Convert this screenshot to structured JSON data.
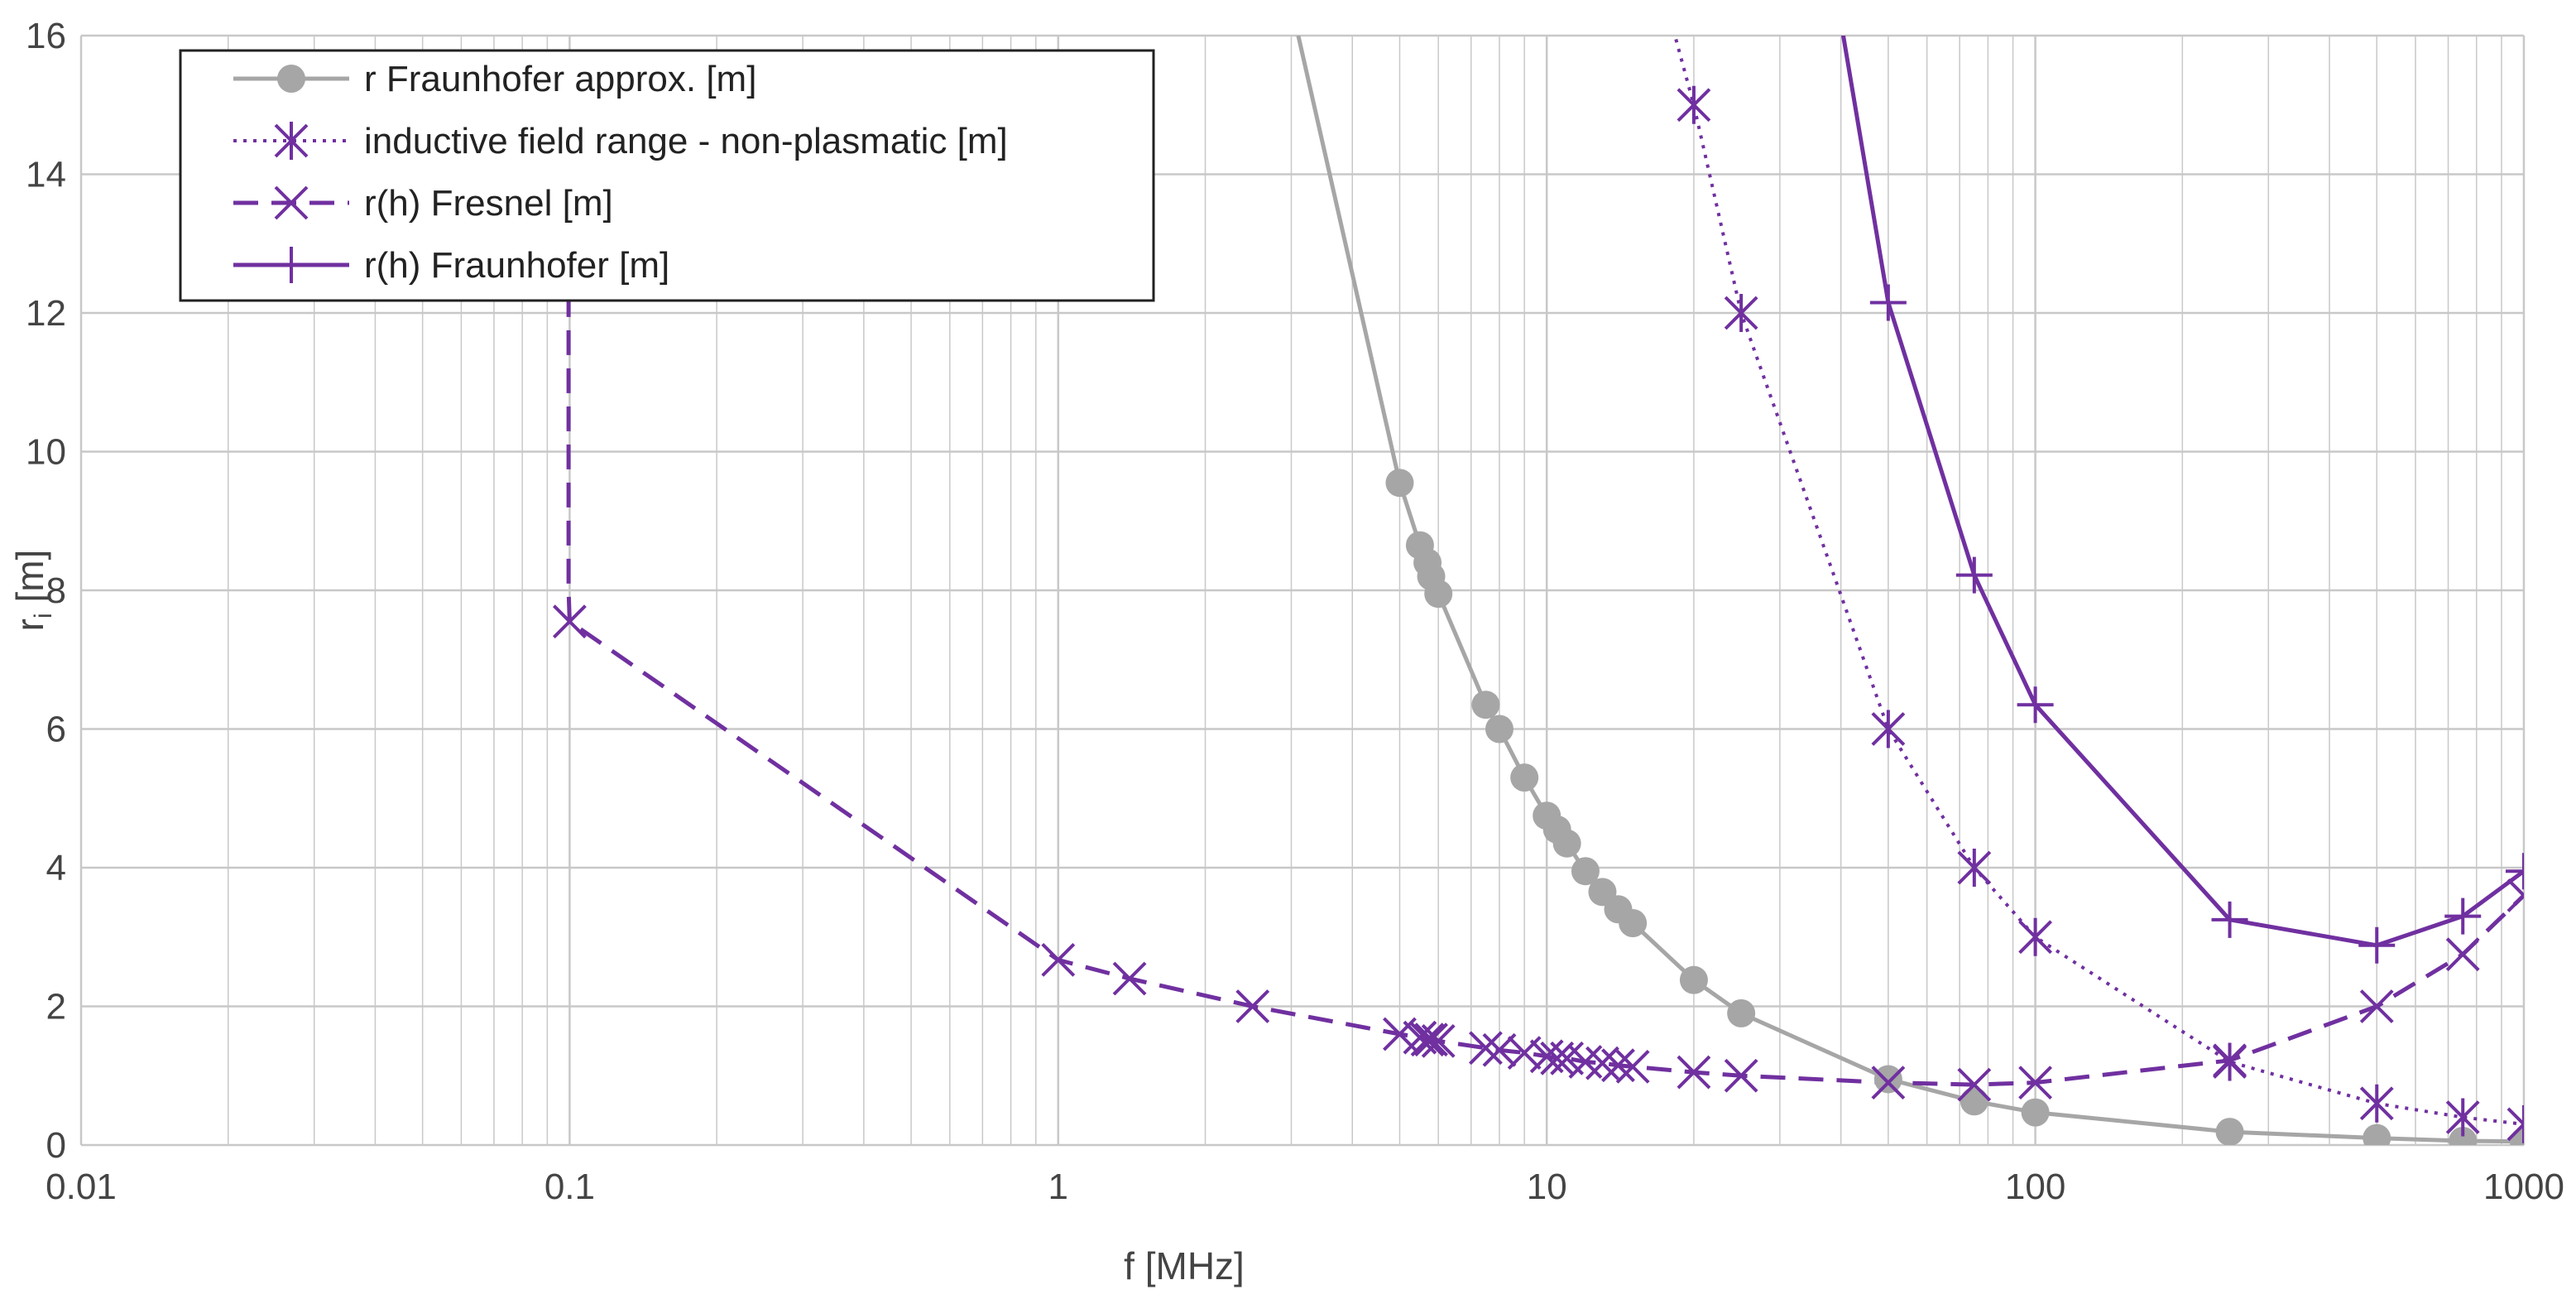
{
  "chart_data": {
    "type": "line",
    "title": "",
    "xlabel": "f [MHz]",
    "ylabel_main": "r",
    "ylabel_sub": "i",
    "ylabel_unit": " [m]",
    "xscale": "log",
    "xlim": [
      0.01,
      1000
    ],
    "ylim": [
      0,
      16
    ],
    "x_ticks": [
      0.01,
      0.1,
      1,
      10,
      100,
      1000
    ],
    "x_tick_labels": [
      "0.01",
      "0.1",
      "1",
      "10",
      "100",
      "1000"
    ],
    "y_ticks": [
      0,
      2,
      4,
      6,
      8,
      10,
      12,
      14,
      16
    ],
    "y_tick_labels": [
      "0",
      "2",
      "4",
      "6",
      "8",
      "10",
      "12",
      "14",
      "16"
    ],
    "grid": true,
    "legend_position": "top-left",
    "colors": {
      "grey": "#a6a6a6",
      "purple": "#7030a0",
      "grid": "#c8c8c8",
      "axis_text": "#444444"
    },
    "series": [
      {
        "name": "r Fraunhofer approx. [m]",
        "color": "#a6a6a6",
        "dash": "solid",
        "marker": "circle",
        "x": [
          3.1,
          5,
          5.5,
          5.7,
          5.8,
          6,
          7.5,
          8,
          9,
          10,
          10.5,
          11,
          12,
          13,
          14,
          15,
          20,
          25,
          50,
          75,
          100,
          250,
          500,
          750,
          1000
        ],
        "y": [
          16,
          9.55,
          8.65,
          8.4,
          8.2,
          7.95,
          6.35,
          6.0,
          5.3,
          4.75,
          4.55,
          4.35,
          3.95,
          3.65,
          3.4,
          3.2,
          2.38,
          1.9,
          0.95,
          0.63,
          0.47,
          0.19,
          0.1,
          0.06,
          0.05
        ],
        "marker_mask": [
          false,
          true,
          true,
          true,
          true,
          true,
          true,
          true,
          true,
          true,
          true,
          true,
          true,
          true,
          true,
          true,
          true,
          true,
          true,
          true,
          true,
          true,
          true,
          true,
          true
        ]
      },
      {
        "name": "inductive field range - non-plasmatic [m]",
        "color": "#7030a0",
        "dash": "dotted",
        "marker": "asterisk",
        "x": [
          17.5,
          20,
          25,
          50,
          75,
          100,
          250,
          500,
          750,
          1000
        ],
        "y": [
          16.5,
          15.0,
          12.0,
          6.0,
          4.0,
          3.0,
          1.2,
          0.6,
          0.4,
          0.3
        ],
        "marker_mask": [
          false,
          true,
          true,
          true,
          true,
          true,
          true,
          true,
          true,
          true
        ]
      },
      {
        "name": "r(h) Fresnel [m]",
        "color": "#7030a0",
        "dash": "dashed",
        "marker": "x",
        "x": [
          0.0995,
          0.0995,
          0.1,
          1,
          1.4,
          2.5,
          5,
          5.5,
          5.7,
          5.8,
          6,
          7.5,
          8,
          9,
          10,
          10.5,
          11,
          12,
          13,
          14,
          15,
          20,
          25,
          50,
          75,
          100,
          250,
          500,
          750,
          1000
        ],
        "y": [
          12.3,
          8.0,
          7.55,
          2.67,
          2.4,
          2.0,
          1.6,
          1.55,
          1.52,
          1.52,
          1.5,
          1.4,
          1.37,
          1.33,
          1.28,
          1.25,
          1.25,
          1.2,
          1.18,
          1.15,
          1.13,
          1.05,
          1.0,
          0.9,
          0.87,
          0.9,
          1.22,
          2.0,
          2.75,
          3.6
        ],
        "marker_mask": [
          false,
          false,
          true,
          true,
          true,
          true,
          true,
          true,
          true,
          true,
          true,
          true,
          true,
          true,
          true,
          true,
          true,
          true,
          true,
          true,
          true,
          true,
          true,
          true,
          true,
          true,
          true,
          true,
          true,
          true
        ]
      },
      {
        "name": "r(h) Fraunhofer [m]",
        "color": "#7030a0",
        "dash": "solid",
        "marker": "plus",
        "x": [
          40,
          50,
          75,
          100,
          250,
          500,
          750,
          1000
        ],
        "y": [
          16.2,
          12.15,
          8.22,
          6.35,
          3.25,
          2.88,
          3.3,
          3.95
        ],
        "marker_mask": [
          false,
          true,
          true,
          true,
          true,
          true,
          true,
          true
        ]
      }
    ]
  }
}
